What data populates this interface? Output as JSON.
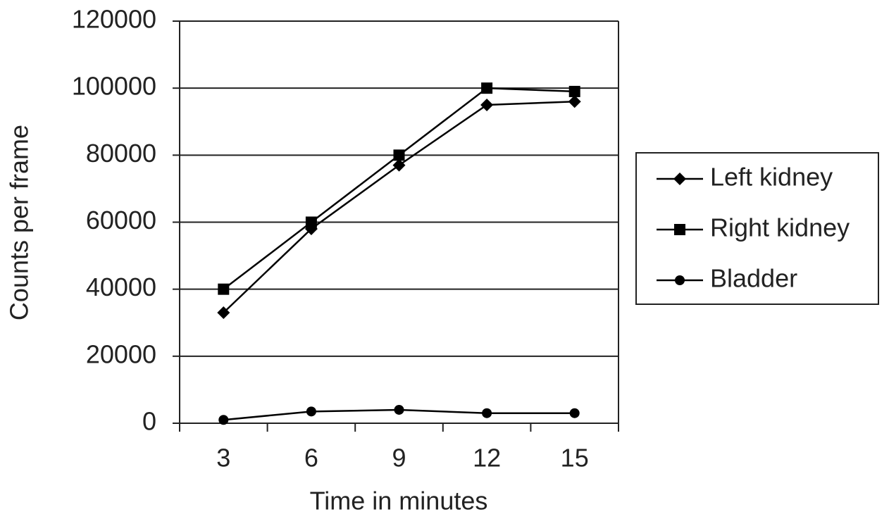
{
  "chart_data": {
    "type": "line",
    "x_label": "Time in minutes",
    "y_label": "Counts per frame",
    "categories": [
      "3",
      "6",
      "9",
      "12",
      "15"
    ],
    "series": [
      {
        "name": "Left kidney",
        "color": "#000000",
        "marker": "diamond",
        "values": [
          33000,
          58000,
          77000,
          95000,
          96000
        ]
      },
      {
        "name": "Right kidney",
        "color": "#000000",
        "marker": "square",
        "values": [
          40000,
          60000,
          80000,
          100000,
          99000
        ]
      },
      {
        "name": "Bladder",
        "color": "#000000",
        "marker": "circle",
        "values": [
          1000,
          3500,
          4000,
          3000,
          3000
        ]
      }
    ],
    "ylim": [
      0,
      120000
    ],
    "yticks": [
      0,
      20000,
      40000,
      60000,
      80000,
      100000,
      120000
    ],
    "grid": true,
    "legend": "right"
  }
}
